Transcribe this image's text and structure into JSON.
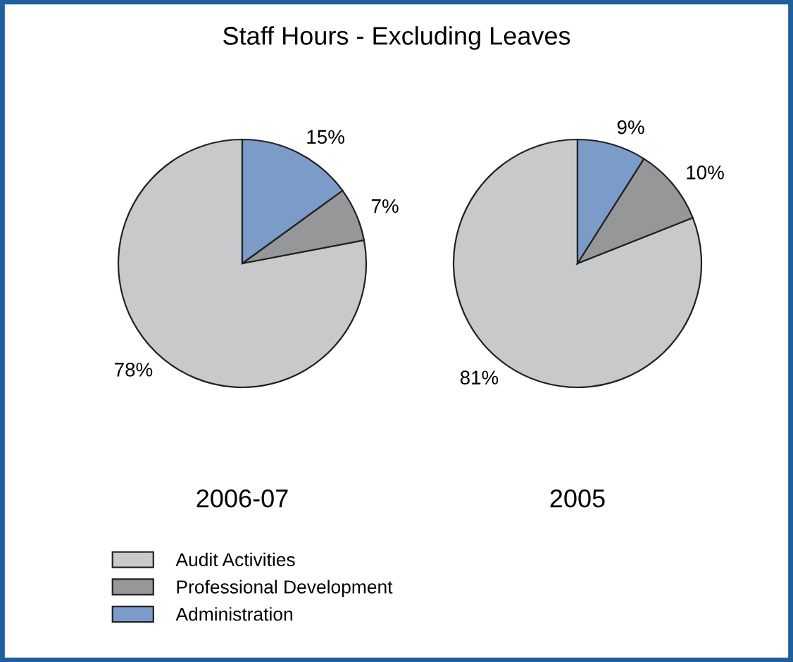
{
  "chart_data": [
    {
      "type": "pie",
      "title": "Staff Hours - Excluding Leaves",
      "xlabel": "2006-07",
      "categories": [
        "Audit Activities",
        "Professional Development",
        "Administration"
      ],
      "values": [
        78,
        7,
        15
      ],
      "value_labels": [
        "78%",
        "7%",
        "15%"
      ],
      "colors": [
        "#c8c9cb",
        "#969799",
        "#7b9cc9"
      ],
      "legend": "bottom"
    },
    {
      "type": "pie",
      "xlabel": "2005",
      "categories": [
        null,
        null,
        null
      ],
      "values": [
        81,
        10,
        9
      ],
      "value_labels": [
        "81%",
        "10%",
        "9%"
      ],
      "colors": [
        "#c8c9cb",
        "#969799",
        "#7b9cc9"
      ]
    }
  ]
}
